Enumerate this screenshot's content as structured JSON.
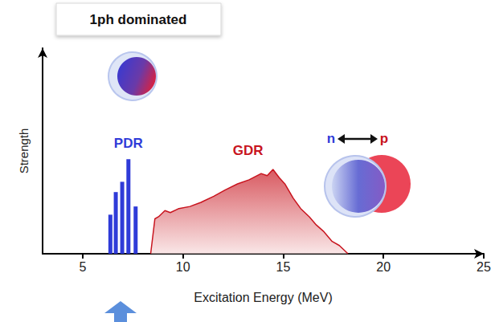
{
  "chart_data": {
    "type": "bar",
    "title": "1ph dominated",
    "x_label": "Excitation Energy (MeV)",
    "y_label": "Strength",
    "annotations": {
      "left": "n",
      "right": "p"
    },
    "xlim": [
      3,
      25
    ],
    "xticks": [
      5,
      10,
      15,
      20,
      25
    ],
    "ylim": [
      0,
      1
    ],
    "tick_labels": "x",
    "grid": false,
    "series": [
      {
        "name": "PDR",
        "type": "bar",
        "color": "#2f3bd8",
        "x": [
          6.38,
          6.65,
          6.97,
          7.28,
          7.64
        ],
        "values": [
          0.19,
          0.3,
          0.35,
          0.46,
          0.23
        ]
      },
      {
        "name": "GDR",
        "type": "area",
        "color": "#c8141e",
        "x": [
          8.39,
          8.6,
          8.78,
          9.1,
          9.37,
          9.8,
          10.35,
          10.9,
          11.54,
          12.1,
          12.72,
          13.3,
          13.9,
          14.2,
          14.49,
          14.8,
          15.08,
          15.5,
          15.87,
          16.3,
          16.65,
          17.0,
          17.44,
          17.8,
          18.23
        ],
        "values": [
          0,
          0.17,
          0.18,
          0.21,
          0.2,
          0.22,
          0.23,
          0.25,
          0.28,
          0.31,
          0.34,
          0.36,
          0.39,
          0.38,
          0.41,
          0.37,
          0.34,
          0.27,
          0.22,
          0.18,
          0.14,
          0.11,
          0.06,
          0.04,
          0
        ]
      }
    ]
  }
}
